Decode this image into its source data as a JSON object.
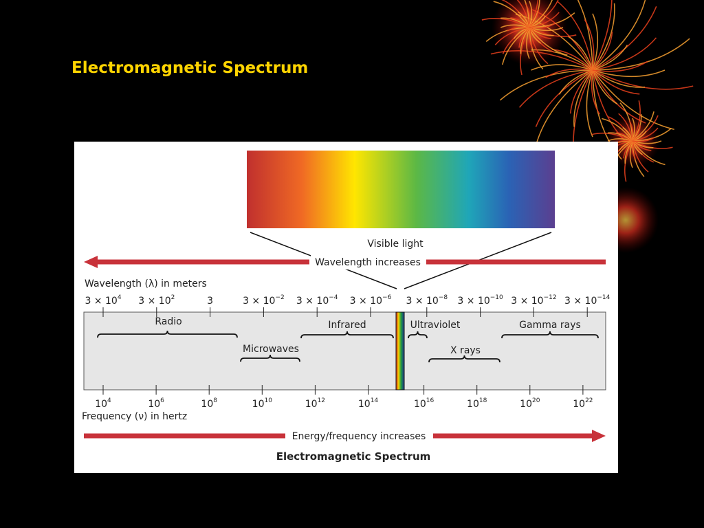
{
  "slide": {
    "title": "Electromagnetic Spectrum"
  },
  "figure": {
    "visible_label": "Visible light",
    "wavelength_arrow": "Wavelength increases",
    "wavelength_axis": "Wavelength (λ) in meters",
    "wavelengths": [
      {
        "base": "3 × 10",
        "exp": "4"
      },
      {
        "base": "3 × 10",
        "exp": "2"
      },
      {
        "base": "3"
      },
      {
        "base": "3 × 10",
        "exp": "−2"
      },
      {
        "base": "3 × 10",
        "exp": "−4"
      },
      {
        "base": "3 × 10",
        "exp": "−6"
      },
      {
        "base": "3 × 10",
        "exp": "−8"
      },
      {
        "base": "3 × 10",
        "exp": "−10"
      },
      {
        "base": "3 × 10",
        "exp": "−12"
      },
      {
        "base": "3 × 10",
        "exp": "−14"
      }
    ],
    "bands": [
      "Radio",
      "Microwaves",
      "Infrared",
      "Ultraviolet",
      "X rays",
      "Gamma rays"
    ],
    "frequencies": [
      {
        "base": "10",
        "exp": "4"
      },
      {
        "base": "10",
        "exp": "6"
      },
      {
        "base": "10",
        "exp": "8"
      },
      {
        "base": "10",
        "exp": "10"
      },
      {
        "base": "10",
        "exp": "12"
      },
      {
        "base": "10",
        "exp": "14"
      },
      {
        "base": "10",
        "exp": "16"
      },
      {
        "base": "10",
        "exp": "18"
      },
      {
        "base": "10",
        "exp": "20"
      },
      {
        "base": "10",
        "exp": "22"
      }
    ],
    "frequency_axis": "Frequency (ν) in hertz",
    "energy_arrow": "Energy/frequency increases",
    "caption": "Electromagnetic Spectrum"
  }
}
